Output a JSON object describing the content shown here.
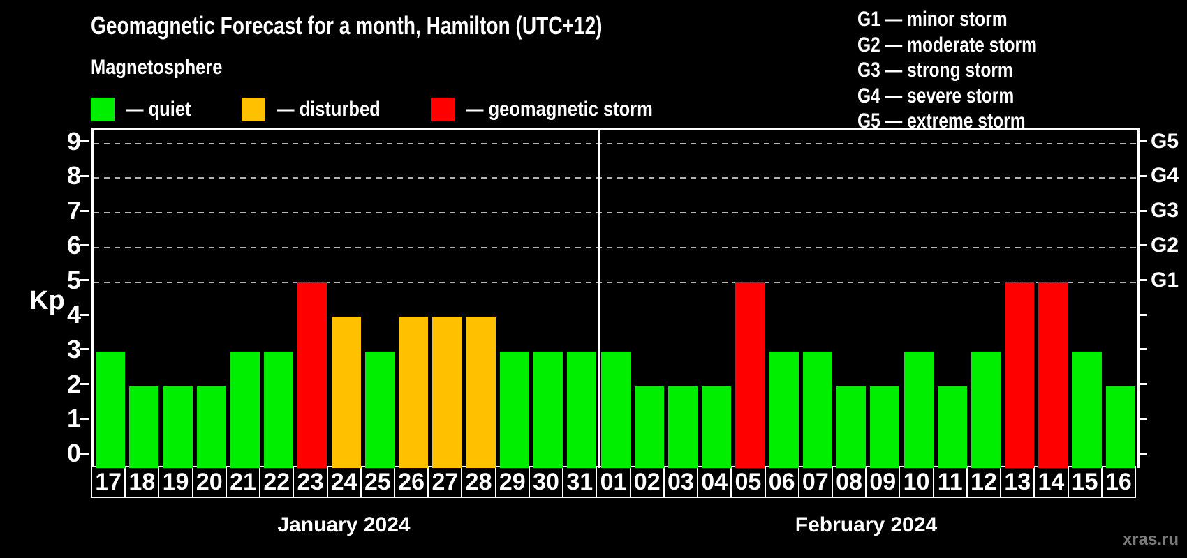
{
  "title": "Geomagnetic Forecast for a month, Hamilton (UTC+12)",
  "subtitle": "Magnetosphere",
  "legend": {
    "items": [
      {
        "level": "quiet",
        "label": "— quiet"
      },
      {
        "level": "disturbed",
        "label": "— disturbed"
      },
      {
        "level": "storm",
        "label": "— geomagnetic storm"
      }
    ]
  },
  "g_scale_legend": {
    "g1": "G1 — minor storm",
    "g2": "G2 — moderate storm",
    "g3": "G3 — strong storm",
    "g4": "G4 — severe storm",
    "g5": "G5 — extreme storm"
  },
  "watermark": "xras.ru",
  "chart_data": {
    "type": "bar",
    "title": "Geomagnetic Forecast for a month, Hamilton (UTC+12)",
    "xlabel": "",
    "ylabel": "Kp",
    "ylim": [
      -0.36,
      9.4
    ],
    "y_ticks": [
      0,
      1,
      2,
      3,
      4,
      5,
      6,
      7,
      8,
      9
    ],
    "gridline_values": [
      5,
      6,
      7,
      8,
      9
    ],
    "right_axis_labels": {
      "5": "G1",
      "6": "G2",
      "7": "G3",
      "8": "G4",
      "9": "G5"
    },
    "grid": "dashed horizontal lines at Kp 5-9 only",
    "legend_position": "top-left",
    "colors": {
      "quiet": "#00ee00",
      "disturbed": "#ffc000",
      "storm": "#ff0000"
    },
    "months": [
      {
        "label": "January 2024",
        "days": [
          {
            "day": "17",
            "kp": 3,
            "condition": "quiet"
          },
          {
            "day": "18",
            "kp": 2,
            "condition": "quiet"
          },
          {
            "day": "19",
            "kp": 2,
            "condition": "quiet"
          },
          {
            "day": "20",
            "kp": 2,
            "condition": "quiet"
          },
          {
            "day": "21",
            "kp": 3,
            "condition": "quiet"
          },
          {
            "day": "22",
            "kp": 3,
            "condition": "quiet"
          },
          {
            "day": "23",
            "kp": 5,
            "condition": "storm"
          },
          {
            "day": "24",
            "kp": 4,
            "condition": "disturbed"
          },
          {
            "day": "25",
            "kp": 3,
            "condition": "quiet"
          },
          {
            "day": "26",
            "kp": 4,
            "condition": "disturbed"
          },
          {
            "day": "27",
            "kp": 4,
            "condition": "disturbed"
          },
          {
            "day": "28",
            "kp": 4,
            "condition": "disturbed"
          },
          {
            "day": "29",
            "kp": 3,
            "condition": "quiet"
          },
          {
            "day": "30",
            "kp": 3,
            "condition": "quiet"
          },
          {
            "day": "31",
            "kp": 3,
            "condition": "quiet"
          }
        ]
      },
      {
        "label": "February 2024",
        "days": [
          {
            "day": "01",
            "kp": 3,
            "condition": "quiet"
          },
          {
            "day": "02",
            "kp": 2,
            "condition": "quiet"
          },
          {
            "day": "03",
            "kp": 2,
            "condition": "quiet"
          },
          {
            "day": "04",
            "kp": 2,
            "condition": "quiet"
          },
          {
            "day": "05",
            "kp": 5,
            "condition": "storm"
          },
          {
            "day": "06",
            "kp": 3,
            "condition": "quiet"
          },
          {
            "day": "07",
            "kp": 3,
            "condition": "quiet"
          },
          {
            "day": "08",
            "kp": 2,
            "condition": "quiet"
          },
          {
            "day": "09",
            "kp": 2,
            "condition": "quiet"
          },
          {
            "day": "10",
            "kp": 3,
            "condition": "quiet"
          },
          {
            "day": "11",
            "kp": 2,
            "condition": "quiet"
          },
          {
            "day": "12",
            "kp": 3,
            "condition": "quiet"
          },
          {
            "day": "13",
            "kp": 5,
            "condition": "storm"
          },
          {
            "day": "14",
            "kp": 5,
            "condition": "storm"
          },
          {
            "day": "15",
            "kp": 3,
            "condition": "quiet"
          },
          {
            "day": "16",
            "kp": 2,
            "condition": "quiet"
          }
        ]
      }
    ]
  }
}
